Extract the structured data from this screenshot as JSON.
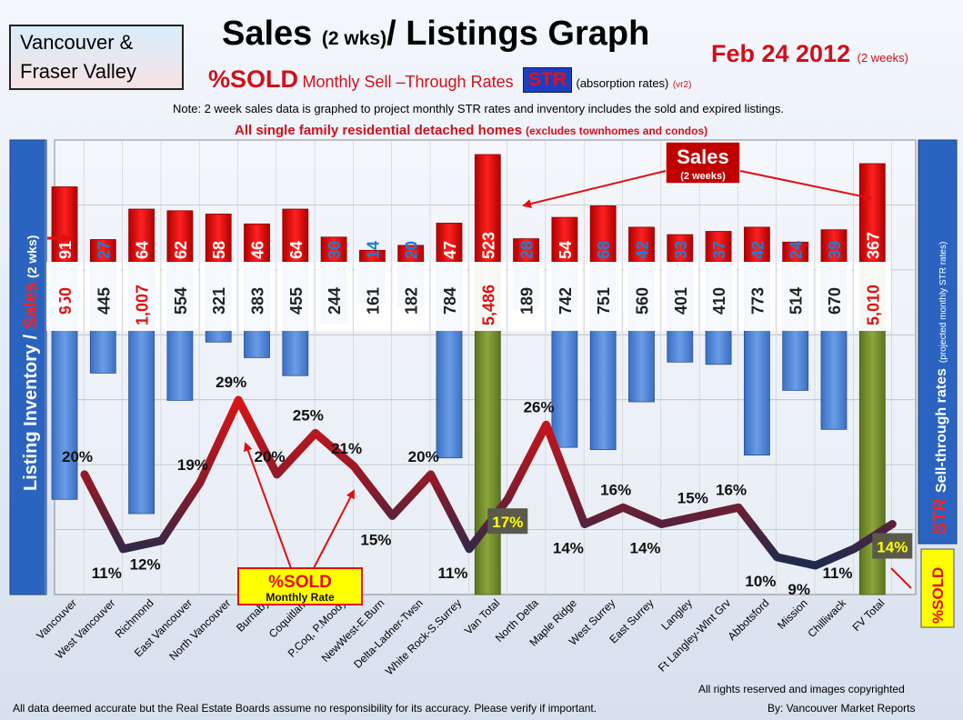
{
  "header": {
    "region_line1": "Vancouver &",
    "region_line2": "Fraser Valley",
    "title_main": "Sales",
    "title_small": "(2 wks)",
    "title_rest": "/ Listings Graph",
    "date_main": "Feb 24 2012",
    "date_small": "(2 weeks)",
    "sub_sold": "%SOLD",
    "sub_monthly": "Monthly Sell –Through Rates",
    "sub_str": "STR",
    "sub_absorption": "(absorption rates)",
    "sub_version": "(vr2)",
    "note": "Note: 2 week sales data is graphed to project monthly STR rates and inventory includes the sold and expired listings.",
    "scope_main": "All single family residential detached homes",
    "scope_small": "(excludes townhomes and condos)"
  },
  "footer": {
    "disclaimer": "All data deemed accurate but the Real Estate Boards assume no responsibility for its accuracy.  Please verify if important.",
    "rights": "All rights reserved and  images copyrighted",
    "by": "By: Vancouver  Market Reports"
  },
  "colors": {
    "sales_bar": "#e01010",
    "inventory_bar": "#4f86d6",
    "total_bar": "#748f2c",
    "line_high": "#d01010",
    "line_low": "#1e2b4d",
    "panel_blue": "#2b64c0"
  },
  "chart_data": {
    "type": "bar",
    "categories": [
      "Vancouver",
      "West Vancouver",
      "Richmond",
      "East Vancouver",
      "North Vancouver",
      "Burnaby",
      "Coquitlam",
      "P.Coq, P.Moody",
      "NewWest-E.Burn",
      "Delta-Ladner-Twsn",
      "White Rock-S.Surrey",
      "Van Total",
      "North Delta",
      "Maple Ridge",
      "West Surrey",
      "East Surrey",
      "Langley",
      "Ft Langley-Wlnt Grv",
      "Abbotsford",
      "Mission",
      "Chilliwack",
      "FV Total"
    ],
    "series": [
      {
        "name": "Sales",
        "values": [
          91,
          27,
          64,
          62,
          58,
          46,
          64,
          30,
          14,
          20,
          47,
          523,
          28,
          54,
          68,
          42,
          33,
          37,
          42,
          24,
          39,
          367
        ],
        "labels": [
          "91",
          "27",
          "64",
          "62",
          "58",
          "46",
          "64",
          "30",
          "14",
          "20",
          "47",
          "523",
          "28",
          "54",
          "68",
          "42",
          "33",
          "37",
          "42",
          "24",
          "39",
          "367"
        ]
      },
      {
        "name": "Listing Inventory",
        "values": [
          950,
          445,
          1007,
          554,
          321,
          383,
          455,
          244,
          161,
          182,
          784,
          5486,
          189,
          742,
          751,
          560,
          401,
          410,
          773,
          514,
          670,
          5010
        ],
        "labels": [
          "950",
          "445",
          "1,007",
          "554",
          "321",
          "383",
          "455",
          "244",
          "161",
          "182",
          "784",
          "5,486",
          "189",
          "742",
          "751",
          "560",
          "401",
          "410",
          "773",
          "514",
          "670",
          "5,010"
        ]
      },
      {
        "name": "%SOLD",
        "values": [
          20,
          11,
          12,
          19,
          29,
          20,
          25,
          21,
          15,
          20,
          11,
          17,
          26,
          14,
          16,
          14,
          15,
          16,
          10,
          9,
          11,
          14
        ],
        "labels": [
          "20%",
          "11%",
          "12%",
          "19%",
          "29%",
          "20%",
          "25%",
          "21%",
          "15%",
          "20%",
          "11%",
          "17%",
          "26%",
          "14%",
          "16%",
          "14%",
          "15%",
          "16%",
          "10%",
          "9%",
          "11%",
          "14%"
        ]
      }
    ],
    "totals": [
      "Van Total",
      "FV Total"
    ],
    "left_axis_label_part1": "Listing Inventory / ",
    "left_axis_label_part2": "Sales",
    "left_axis_label_part3": " (2 wks)",
    "right_axis_label_part1": "Sell-through rates",
    "right_axis_label_part2": "(projected monthly STR rates)",
    "right_axis_str": "STR",
    "right_sold_badge": "%SOLD",
    "callout_sales_main": "Sales",
    "callout_sales_small": "(2 weeks)",
    "callout_sold_main": "%SOLD",
    "callout_sold_small": "Monthly Rate",
    "grid": true
  }
}
